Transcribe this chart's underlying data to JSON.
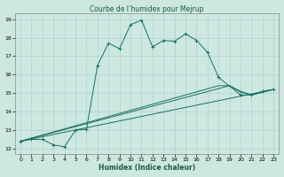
{
  "title": "Courbe de l’humidex pour Mejrup",
  "xlabel": "Humidex (Indice chaleur)",
  "bg_color": "#cce8e0",
  "grid_color": "#aacccc",
  "line_color": "#1a7060",
  "xlim": [
    -0.5,
    23.5
  ],
  "ylim": [
    11.7,
    19.3
  ],
  "xticks": [
    0,
    1,
    2,
    3,
    4,
    5,
    6,
    7,
    8,
    9,
    10,
    11,
    12,
    13,
    14,
    15,
    16,
    17,
    18,
    19,
    20,
    21,
    22,
    23
  ],
  "yticks": [
    12,
    13,
    14,
    15,
    16,
    17,
    18,
    19
  ],
  "series1_x": [
    0,
    1,
    2,
    3,
    4,
    5,
    6,
    7,
    8,
    9,
    10,
    11,
    12,
    13,
    14,
    15,
    16,
    17,
    18,
    20,
    21,
    22,
    23
  ],
  "series1_y": [
    12.4,
    12.5,
    12.5,
    12.2,
    12.1,
    13.0,
    13.05,
    16.5,
    17.7,
    17.4,
    18.7,
    18.95,
    17.5,
    17.85,
    17.8,
    18.2,
    17.85,
    17.2,
    15.85,
    14.9,
    14.9,
    15.1,
    15.2
  ],
  "series2_x": [
    0,
    23
  ],
  "series2_y": [
    12.4,
    15.2
  ],
  "series3_x": [
    0,
    19,
    20,
    21,
    22,
    23
  ],
  "series3_y": [
    12.4,
    15.4,
    15.1,
    14.9,
    15.05,
    15.2
  ],
  "series4_x": [
    0,
    18,
    19,
    20,
    21,
    22,
    23
  ],
  "series4_y": [
    12.4,
    15.4,
    15.4,
    15.05,
    14.9,
    15.05,
    15.2
  ]
}
